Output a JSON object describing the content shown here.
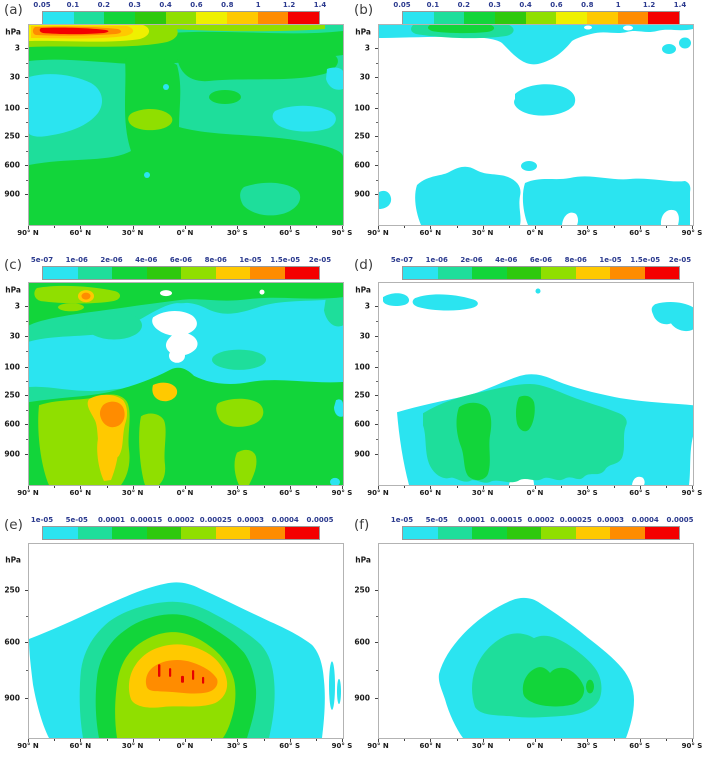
{
  "figure": {
    "background": "#ffffff",
    "label_color": "#3c3c3c",
    "colorbar_tick_color": "#2b3a8e",
    "axis_label_color": "#1a1a1a",
    "x_tick_labels": [
      "90° N",
      "60° N",
      "30° N",
      "0° N",
      "30° S",
      "60° S",
      "90° S"
    ],
    "panels": [
      {
        "id": "a",
        "label": "(a)",
        "colorbar": {
          "tick_labels": [
            "0.05",
            "0.1",
            "0.2",
            "0.3",
            "0.4",
            "0.6",
            "0.8",
            "1",
            "1.2",
            "1.4"
          ],
          "colors": [
            "#2BE4F0",
            "#1EDE9B",
            "#12D53A",
            "#2FC90E",
            "#90DF00",
            "#EFF000",
            "#FFC900",
            "#FF8C00",
            "#F40000"
          ]
        },
        "y_axis": {
          "title": "hPa",
          "title_p": 4,
          "ticks": [
            {
              "t": "3",
              "p": 12
            },
            {
              "t": "30",
              "p": 26.5
            },
            {
              "t": "100",
              "p": 42
            },
            {
              "t": "250",
              "p": 56
            },
            {
              "t": "600",
              "p": 70.5
            },
            {
              "t": "900",
              "p": 85
            }
          ]
        },
        "x_axis": {
          "ticks": [
            "90° N",
            "60° N",
            "30° N",
            "0° N",
            "30° S",
            "60° S",
            "90° S"
          ]
        }
      },
      {
        "id": "b",
        "label": "(b)",
        "colorbar": {
          "tick_labels": [
            "0.05",
            "0.1",
            "0.2",
            "0.3",
            "0.4",
            "0.6",
            "0.8",
            "1",
            "1.2",
            "1.4"
          ],
          "colors": [
            "#2BE4F0",
            "#1EDE9B",
            "#12D53A",
            "#2FC90E",
            "#90DF00",
            "#EFF000",
            "#FFC900",
            "#FF8C00",
            "#F40000"
          ]
        },
        "y_axis": {
          "title": "hPa",
          "title_p": 4,
          "ticks": [
            {
              "t": "3",
              "p": 12
            },
            {
              "t": "30",
              "p": 26.5
            },
            {
              "t": "100",
              "p": 42
            },
            {
              "t": "250",
              "p": 56
            },
            {
              "t": "600",
              "p": 70.5
            },
            {
              "t": "900",
              "p": 85
            }
          ]
        },
        "x_axis": {
          "ticks": [
            "90° N",
            "60° N",
            "30° N",
            "0° N",
            "30° S",
            "60° S",
            "90° S"
          ]
        }
      },
      {
        "id": "c",
        "label": "(c)",
        "colorbar": {
          "tick_labels": [
            "5e-07",
            "1e-06",
            "2e-06",
            "4e-06",
            "6e-06",
            "8e-06",
            "1e-05",
            "1.5e-05",
            "2e-05"
          ],
          "colors": [
            "#2BE4F0",
            "#1EDE9B",
            "#12D53A",
            "#2FC90E",
            "#90DF00",
            "#FFC900",
            "#FF8C00",
            "#F40000"
          ]
        },
        "y_axis": {
          "title": "hPa",
          "title_p": 4,
          "ticks": [
            {
              "t": "3",
              "p": 12
            },
            {
              "t": "30",
              "p": 26.5
            },
            {
              "t": "100",
              "p": 42
            },
            {
              "t": "250",
              "p": 56
            },
            {
              "t": "600",
              "p": 70.5
            },
            {
              "t": "900",
              "p": 85
            }
          ]
        },
        "x_axis": {
          "ticks": [
            "90° N",
            "60° N",
            "30° N",
            "0° N",
            "30° S",
            "60° S",
            "90° S"
          ]
        }
      },
      {
        "id": "d",
        "label": "(d)",
        "colorbar": {
          "tick_labels": [
            "5e-07",
            "1e-06",
            "2e-06",
            "4e-06",
            "6e-06",
            "8e-06",
            "1e-05",
            "1.5e-05",
            "2e-05"
          ],
          "colors": [
            "#2BE4F0",
            "#1EDE9B",
            "#12D53A",
            "#2FC90E",
            "#90DF00",
            "#FFC900",
            "#FF8C00",
            "#F40000"
          ]
        },
        "y_axis": {
          "title": "hPa",
          "title_p": 4,
          "ticks": [
            {
              "t": "3",
              "p": 12
            },
            {
              "t": "30",
              "p": 26.5
            },
            {
              "t": "100",
              "p": 42
            },
            {
              "t": "250",
              "p": 56
            },
            {
              "t": "600",
              "p": 70.5
            },
            {
              "t": "900",
              "p": 85
            }
          ]
        },
        "x_axis": {
          "ticks": [
            "90° N",
            "60° N",
            "30° N",
            "0° N",
            "30° S",
            "60° S",
            "90° S"
          ]
        }
      },
      {
        "id": "e",
        "label": "(e)",
        "colorbar": {
          "tick_labels": [
            "1e-05",
            "5e-05",
            "0.0001",
            "0.00015",
            "0.0002",
            "0.00025",
            "0.0003",
            "0.0004",
            "0.0005"
          ],
          "colors": [
            "#2BE4F0",
            "#1EDE9B",
            "#12D53A",
            "#2FC90E",
            "#90DF00",
            "#FFC900",
            "#FF8C00",
            "#F40000"
          ]
        },
        "y_axis": {
          "title": "hPa",
          "title_p": 9,
          "ticks": [
            {
              "t": "250",
              "p": 24
            },
            {
              "t": "600",
              "p": 51
            },
            {
              "t": "900",
              "p": 80
            }
          ]
        },
        "x_axis": {
          "ticks": [
            "90° N",
            "60° N",
            "30° N",
            "0° N",
            "30° S",
            "60° S",
            "90° S"
          ]
        }
      },
      {
        "id": "f",
        "label": "(f)",
        "colorbar": {
          "tick_labels": [
            "1e-05",
            "5e-05",
            "0.0001",
            "0.00015",
            "0.0002",
            "0.00025",
            "0.0003",
            "0.0004",
            "0.0005"
          ],
          "colors": [
            "#2BE4F0",
            "#1EDE9B",
            "#12D53A",
            "#2FC90E",
            "#90DF00",
            "#FFC900",
            "#FF8C00",
            "#F40000"
          ]
        },
        "y_axis": {
          "title": "hPa",
          "title_p": 9,
          "ticks": [
            {
              "t": "250",
              "p": 24
            },
            {
              "t": "600",
              "p": 51
            },
            {
              "t": "900",
              "p": 80
            }
          ]
        },
        "x_axis": {
          "ticks": [
            "90° N",
            "60° N",
            "30° N",
            "0° N",
            "30° S",
            "60° S",
            "90° S"
          ]
        }
      }
    ]
  },
  "chart_data": [
    {
      "panel": "a",
      "type": "heatmap",
      "subtype": "filled-contour latitude-pressure section",
      "x_ticks": [
        "90° N",
        "60° N",
        "30° N",
        "0° N",
        "30° S",
        "60° S",
        "90° S"
      ],
      "y_unit": "hPa",
      "y_ticks": [
        3,
        30,
        100,
        250,
        600,
        900
      ],
      "levels": [
        0.05,
        0.1,
        0.2,
        0.3,
        0.4,
        0.6,
        0.8,
        1,
        1.2,
        1.4
      ],
      "summary": "Broad 0.1-0.4 green background at all latitudes/levels; strong maximum 1.2-1.4 (red) near 55-80N at 1-2 hPa ringed by orange/yellow; minima 0.05-0.1 (cyan) near 60-90N at 30-250 hPa and near 30-60S around 100-250 hPa; 0.4 patch near 30N mid-stratosphere."
    },
    {
      "panel": "b",
      "type": "heatmap",
      "subtype": "filled-contour latitude-pressure section",
      "x_ticks": [
        "90° N",
        "60° N",
        "30° N",
        "0° N",
        "30° S",
        "60° S",
        "90° S"
      ],
      "y_unit": "hPa",
      "y_ticks": [
        3,
        30,
        100,
        250,
        600,
        900
      ],
      "levels": [
        0.05,
        0.1,
        0.2,
        0.3,
        0.4,
        0.6,
        0.8,
        1,
        1.2,
        1.4
      ],
      "summary": "Mostly below 0.05 (white); 0.05-0.1 cyan layer near 1-5 hPa dipping to ~10 hPa at the equator with a 0.1-0.3 green patch near 60-30N; isolated 0.05-0.1 blob near 100 hPa at 0N; patchy 0.05-0.1 band below ~600 hPa at most latitudes."
    },
    {
      "panel": "c",
      "type": "heatmap",
      "subtype": "filled-contour latitude-pressure section",
      "x_ticks": [
        "90° N",
        "60° N",
        "30° N",
        "0° N",
        "30° S",
        "60° S",
        "90° S"
      ],
      "y_unit": "hPa",
      "y_ticks": [
        3,
        30,
        100,
        250,
        600,
        900
      ],
      "levels": [
        5e-07,
        1e-06,
        2e-06,
        4e-06,
        6e-06,
        8e-06,
        1e-05,
        1.5e-05,
        2e-05
      ],
      "summary": "2e-6-6e-6 green band above ~5 hPa with <5e-7 white pockets near 10-30 hPa at 0-30N; 5e-7-1e-6 cyan band 30-250 hPa; values rise below 250 hPa: broad 4e-6-8e-6 with 8e-6-1e-5 yellow swaths and a 1e-5-1.5e-5 orange core near 40N at 400-600 hPa."
    },
    {
      "panel": "d",
      "type": "heatmap",
      "subtype": "filled-contour latitude-pressure section",
      "x_ticks": [
        "90° N",
        "60° N",
        "30° N",
        "0° N",
        "30° S",
        "60° S",
        "90° S"
      ],
      "y_unit": "hPa",
      "y_ticks": [
        3,
        30,
        100,
        250,
        600,
        900
      ],
      "levels": [
        5e-07,
        1e-06,
        2e-06,
        4e-06,
        6e-06,
        8e-06,
        1e-05,
        1.5e-05,
        2e-05
      ],
      "summary": "Mostly below 5e-7 (white) above 250 hPa except small 5e-7-1e-6 cyan patches near 1-3 hPa (60-30N, 60-90S); tropospheric dome below ~150-250 hPa spanning 90N-90S: 5e-7-1e-6 cyan shell, 1e-6-2e-6 interior, 2e-6-4e-6 green cores near 30-40N and 15N at 400-900 hPa."
    },
    {
      "panel": "e",
      "type": "heatmap",
      "subtype": "filled-contour latitude-pressure section",
      "x_ticks": [
        "90° N",
        "60° N",
        "30° N",
        "0° N",
        "30° S",
        "60° S",
        "90° S"
      ],
      "y_unit": "hPa",
      "y_ticks": [
        250,
        600,
        900
      ],
      "levels": [
        1e-05,
        5e-05,
        0.0001,
        0.00015,
        0.0002,
        0.00025,
        0.0003,
        0.0004,
        0.0005
      ],
      "summary": "Concentric dome centered near the equator below ~250 hPa: cyan 1e-5-5e-5 shell spanning ~75N-75S, increasing inward through green and yellow to a 3e-4-4e-4 orange core at 650-900 hPa between 30N and 20S, with small >4e-4 red streaks inside; white above ~250 hPa."
    },
    {
      "panel": "f",
      "type": "heatmap",
      "subtype": "filled-contour latitude-pressure section",
      "x_ticks": [
        "90° N",
        "60° N",
        "30° N",
        "0° N",
        "30° S",
        "60° S",
        "90° S"
      ],
      "y_unit": "hPa",
      "y_ticks": [
        250,
        600,
        900
      ],
      "levels": [
        1e-05,
        5e-05,
        0.0001,
        0.00015,
        0.0002,
        0.00025,
        0.0003,
        0.0004,
        0.0005
      ],
      "summary": "Weaker narrower dome below ~300 hPa between ~55N and 55S: mostly 1e-5-5e-5 cyan, 5e-5-1e-4 interior, small 1e-4-1.5e-4 green core near 600-900 hPa between 20N and 10S; white elsewhere."
    }
  ]
}
